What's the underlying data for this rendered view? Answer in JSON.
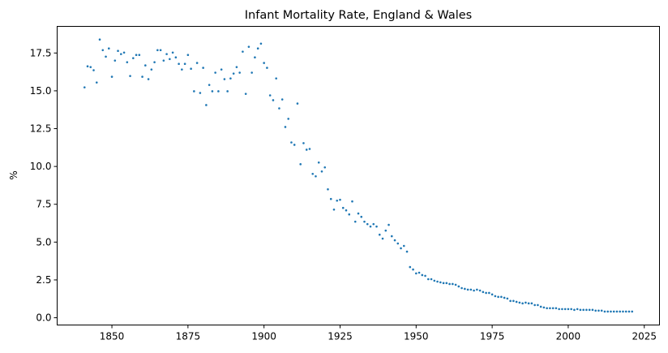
{
  "chart_data": {
    "type": "scatter",
    "title": "Infant Mortality Rate, England & Wales",
    "xlabel": "",
    "ylabel": "%",
    "xlim": [
      1832,
      2030
    ],
    "ylim": [
      -0.48,
      19.26
    ],
    "xticks": [
      1850,
      1875,
      1900,
      1925,
      1950,
      1975,
      2000,
      2025
    ],
    "xtick_labels": [
      "1850",
      "1875",
      "1900",
      "1925",
      "1950",
      "1975",
      "2000",
      "2025"
    ],
    "yticks": [
      0.0,
      2.5,
      5.0,
      7.5,
      10.0,
      12.5,
      15.0,
      17.5
    ],
    "ytick_labels": [
      "0.0",
      "2.5",
      "5.0",
      "7.5",
      "10.0",
      "12.5",
      "15.0",
      "17.5"
    ],
    "grid": false,
    "legend": null,
    "marker_color": "#1f77b4",
    "series": [
      {
        "name": "Infant mortality rate",
        "x": [
          1841,
          1842,
          1843,
          1844,
          1845,
          1846,
          1847,
          1848,
          1849,
          1850,
          1851,
          1852,
          1853,
          1854,
          1855,
          1856,
          1857,
          1858,
          1859,
          1860,
          1861,
          1862,
          1863,
          1864,
          1865,
          1866,
          1867,
          1868,
          1869,
          1870,
          1871,
          1872,
          1873,
          1874,
          1875,
          1876,
          1877,
          1878,
          1879,
          1880,
          1881,
          1882,
          1883,
          1884,
          1885,
          1886,
          1887,
          1888,
          1889,
          1890,
          1891,
          1892,
          1893,
          1894,
          1895,
          1896,
          1897,
          1898,
          1899,
          1900,
          1901,
          1902,
          1903,
          1904,
          1905,
          1906,
          1907,
          1908,
          1909,
          1910,
          1911,
          1912,
          1913,
          1914,
          1915,
          1916,
          1917,
          1918,
          1919,
          1920,
          1921,
          1922,
          1923,
          1924,
          1925,
          1926,
          1927,
          1928,
          1929,
          1930,
          1931,
          1932,
          1933,
          1934,
          1935,
          1936,
          1937,
          1938,
          1939,
          1940,
          1941,
          1942,
          1943,
          1944,
          1945,
          1946,
          1947,
          1948,
          1949,
          1950,
          1951,
          1952,
          1953,
          1954,
          1955,
          1956,
          1957,
          1958,
          1959,
          1960,
          1961,
          1962,
          1963,
          1964,
          1965,
          1966,
          1967,
          1968,
          1969,
          1970,
          1971,
          1972,
          1973,
          1974,
          1975,
          1976,
          1977,
          1978,
          1979,
          1980,
          1981,
          1982,
          1983,
          1984,
          1985,
          1986,
          1987,
          1988,
          1989,
          1990,
          1991,
          1992,
          1993,
          1994,
          1995,
          1996,
          1997,
          1998,
          1999,
          2000,
          2001,
          2002,
          2003,
          2004,
          2005,
          2006,
          2007,
          2008,
          2009,
          2010,
          2011,
          2012,
          2013,
          2014,
          2015,
          2016,
          2017,
          2018,
          2019,
          2020,
          2021
        ],
        "values": [
          15.23,
          16.62,
          16.57,
          16.36,
          15.55,
          18.39,
          17.69,
          17.26,
          17.8,
          15.93,
          17.0,
          17.64,
          17.43,
          17.53,
          16.89,
          15.98,
          17.16,
          17.37,
          17.37,
          15.93,
          16.68,
          15.77,
          16.41,
          16.89,
          17.69,
          17.69,
          17.0,
          17.43,
          17.1,
          17.53,
          17.21,
          16.78,
          16.41,
          16.78,
          17.37,
          16.46,
          14.97,
          16.84,
          14.86,
          16.52,
          14.06,
          15.39,
          14.97,
          16.2,
          14.97,
          16.41,
          15.77,
          14.97,
          15.82,
          16.14,
          16.57,
          16.2,
          17.59,
          14.8,
          17.91,
          16.2,
          17.21,
          17.8,
          18.12,
          16.84,
          16.52,
          14.7,
          14.38,
          15.82,
          13.84,
          14.43,
          12.61,
          13.15,
          11.59,
          11.43,
          14.16,
          10.15,
          11.54,
          11.11,
          11.16,
          9.51,
          9.35,
          10.26,
          9.67,
          9.94,
          8.49,
          7.85,
          7.15,
          7.74,
          7.8,
          7.26,
          7.1,
          6.83,
          7.69,
          6.35,
          6.89,
          6.67,
          6.35,
          6.19,
          6.03,
          6.19,
          6.03,
          5.49,
          5.23,
          5.76,
          6.14,
          5.39,
          5.12,
          4.91,
          4.59,
          4.75,
          4.37,
          3.35,
          3.19,
          2.93,
          2.98,
          2.82,
          2.77,
          2.55,
          2.55,
          2.45,
          2.39,
          2.34,
          2.29,
          2.29,
          2.23,
          2.23,
          2.18,
          2.07,
          1.96,
          1.91,
          1.86,
          1.86,
          1.8,
          1.86,
          1.8,
          1.7,
          1.64,
          1.64,
          1.54,
          1.43,
          1.38,
          1.38,
          1.32,
          1.27,
          1.11,
          1.11,
          1.05,
          1.0,
          0.95,
          1.0,
          0.95,
          0.95,
          0.84,
          0.84,
          0.73,
          0.68,
          0.63,
          0.63,
          0.63,
          0.63,
          0.57,
          0.57,
          0.57,
          0.57,
          0.57,
          0.52,
          0.57,
          0.52,
          0.52,
          0.52,
          0.52,
          0.52,
          0.47,
          0.47,
          0.47,
          0.41,
          0.41,
          0.41,
          0.41,
          0.41,
          0.41,
          0.41,
          0.41,
          0.41,
          0.41
        ]
      }
    ]
  }
}
